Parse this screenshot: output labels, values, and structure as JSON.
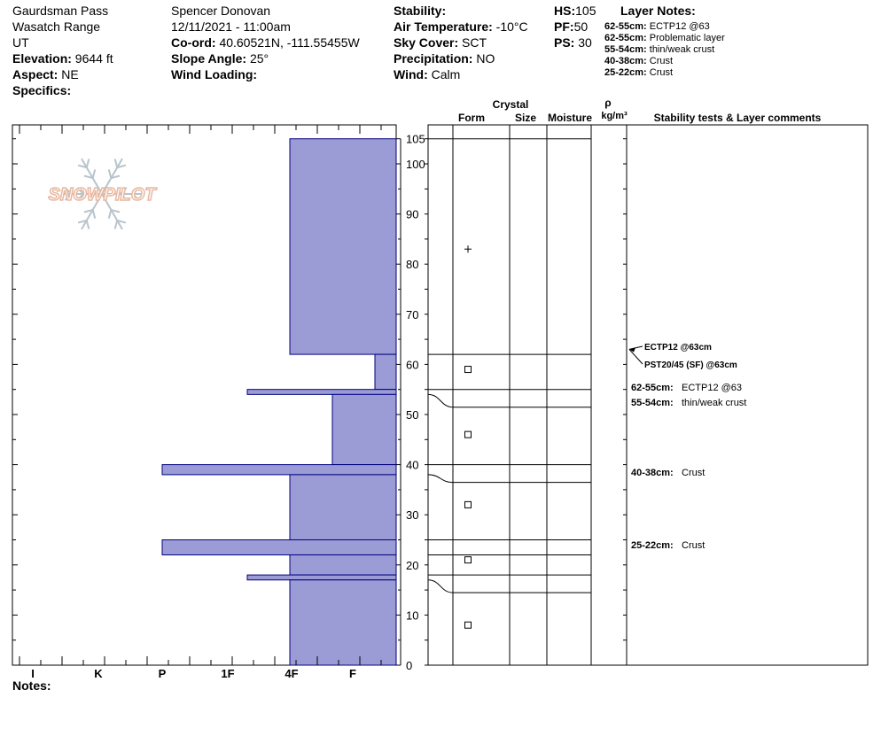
{
  "header": {
    "location": "Gaurdsman Pass",
    "range": "Wasatch Range",
    "state": "UT",
    "elevation_label": "Elevation:",
    "elevation": "9644 ft",
    "aspect_label": "Aspect:",
    "aspect": "NE",
    "specifics_label": "Specifics:",
    "observer": "Spencer Donovan",
    "datetime": "12/11/2021 - 11:00am",
    "coord_label": "Co-ord:",
    "coord": "40.60521N, -111.55455W",
    "slope_label": "Slope Angle:",
    "slope": "25°",
    "wind_loading_label": "Wind Loading:",
    "stability_label": "Stability:",
    "air_temp_label": "Air Temperature:",
    "air_temp": "-10°C",
    "sky_label": "Sky Cover:",
    "sky": "SCT",
    "precip_label": "Precipitation:",
    "precip": "NO",
    "wind_label": "Wind:",
    "wind": "Calm",
    "hs_label": "HS:",
    "hs": "105",
    "pf_label": "PF:",
    "pf": "50",
    "ps_label": "PS:",
    "ps": "30"
  },
  "layer_notes": {
    "title": "Layer Notes:",
    "items": [
      {
        "range": "62-55cm:",
        "text": "ECTP12 @63"
      },
      {
        "range": "62-55cm:",
        "text": "Problematic layer"
      },
      {
        "range": "55-54cm:",
        "text": "thin/weak crust"
      },
      {
        "range": "40-38cm:",
        "text": "Crust"
      },
      {
        "range": "25-22cm:",
        "text": "Crust"
      }
    ]
  },
  "column_headers": {
    "crystal": "Crystal",
    "form": "Form",
    "size": "Size",
    "moisture": "Moisture",
    "rho": "ρ",
    "density_unit": "kg/m³",
    "comments": "Stability tests & Layer comments"
  },
  "logo_text": "SNOWPILOT",
  "notes_label": "Notes:",
  "colors": {
    "hardness_fill": "#9b9bd6",
    "hardness_stroke": "#000080",
    "logo_text": "#e8b8a0",
    "logo_flake": "#b8c4cc"
  },
  "chart_data": {
    "type": "bar",
    "title": "",
    "xlabel": "",
    "ylabel": "",
    "ylim": [
      0,
      105
    ],
    "y_ticks": [
      0,
      10,
      20,
      30,
      40,
      50,
      60,
      70,
      80,
      90,
      100,
      105
    ],
    "hardness_scale": [
      "I",
      "K",
      "P",
      "1F",
      "4F",
      "F"
    ],
    "layers": [
      {
        "top": 105,
        "bottom": 62,
        "hardness": "4F"
      },
      {
        "top": 62,
        "bottom": 55,
        "hardness": "F+"
      },
      {
        "top": 55,
        "bottom": 54,
        "hardness": "1F"
      },
      {
        "top": 54,
        "bottom": 40,
        "hardness": "F"
      },
      {
        "top": 40,
        "bottom": 38,
        "hardness": "P"
      },
      {
        "top": 38,
        "bottom": 25,
        "hardness": "4F"
      },
      {
        "top": 25,
        "bottom": 22,
        "hardness": "P"
      },
      {
        "top": 22,
        "bottom": 18,
        "hardness": "4F"
      },
      {
        "top": 18,
        "bottom": 17,
        "hardness": "1F"
      },
      {
        "top": 17,
        "bottom": 0,
        "hardness": "4F-"
      }
    ],
    "form_symbols": [
      {
        "height": 83,
        "symbol": "+"
      },
      {
        "height": 59,
        "symbol": "□"
      },
      {
        "height": 46,
        "symbol": "□"
      },
      {
        "height": 32,
        "symbol": "□"
      },
      {
        "height": 21,
        "symbol": "□"
      },
      {
        "height": 8,
        "symbol": "□"
      }
    ],
    "stability_tests": [
      {
        "height": 63,
        "label": "ECTP12 @63cm"
      },
      {
        "height": 63,
        "label": "PST20/45 (SF) @63cm"
      }
    ],
    "layer_comments": [
      {
        "height": 55.5,
        "range": "62-55cm:",
        "text": "ECTP12 @63"
      },
      {
        "height": 52.5,
        "range": "55-54cm:",
        "text": "thin/weak crust"
      },
      {
        "height": 38.5,
        "range": "40-38cm:",
        "text": "Crust"
      },
      {
        "height": 24,
        "range": "25-22cm:",
        "text": "Crust"
      }
    ]
  }
}
